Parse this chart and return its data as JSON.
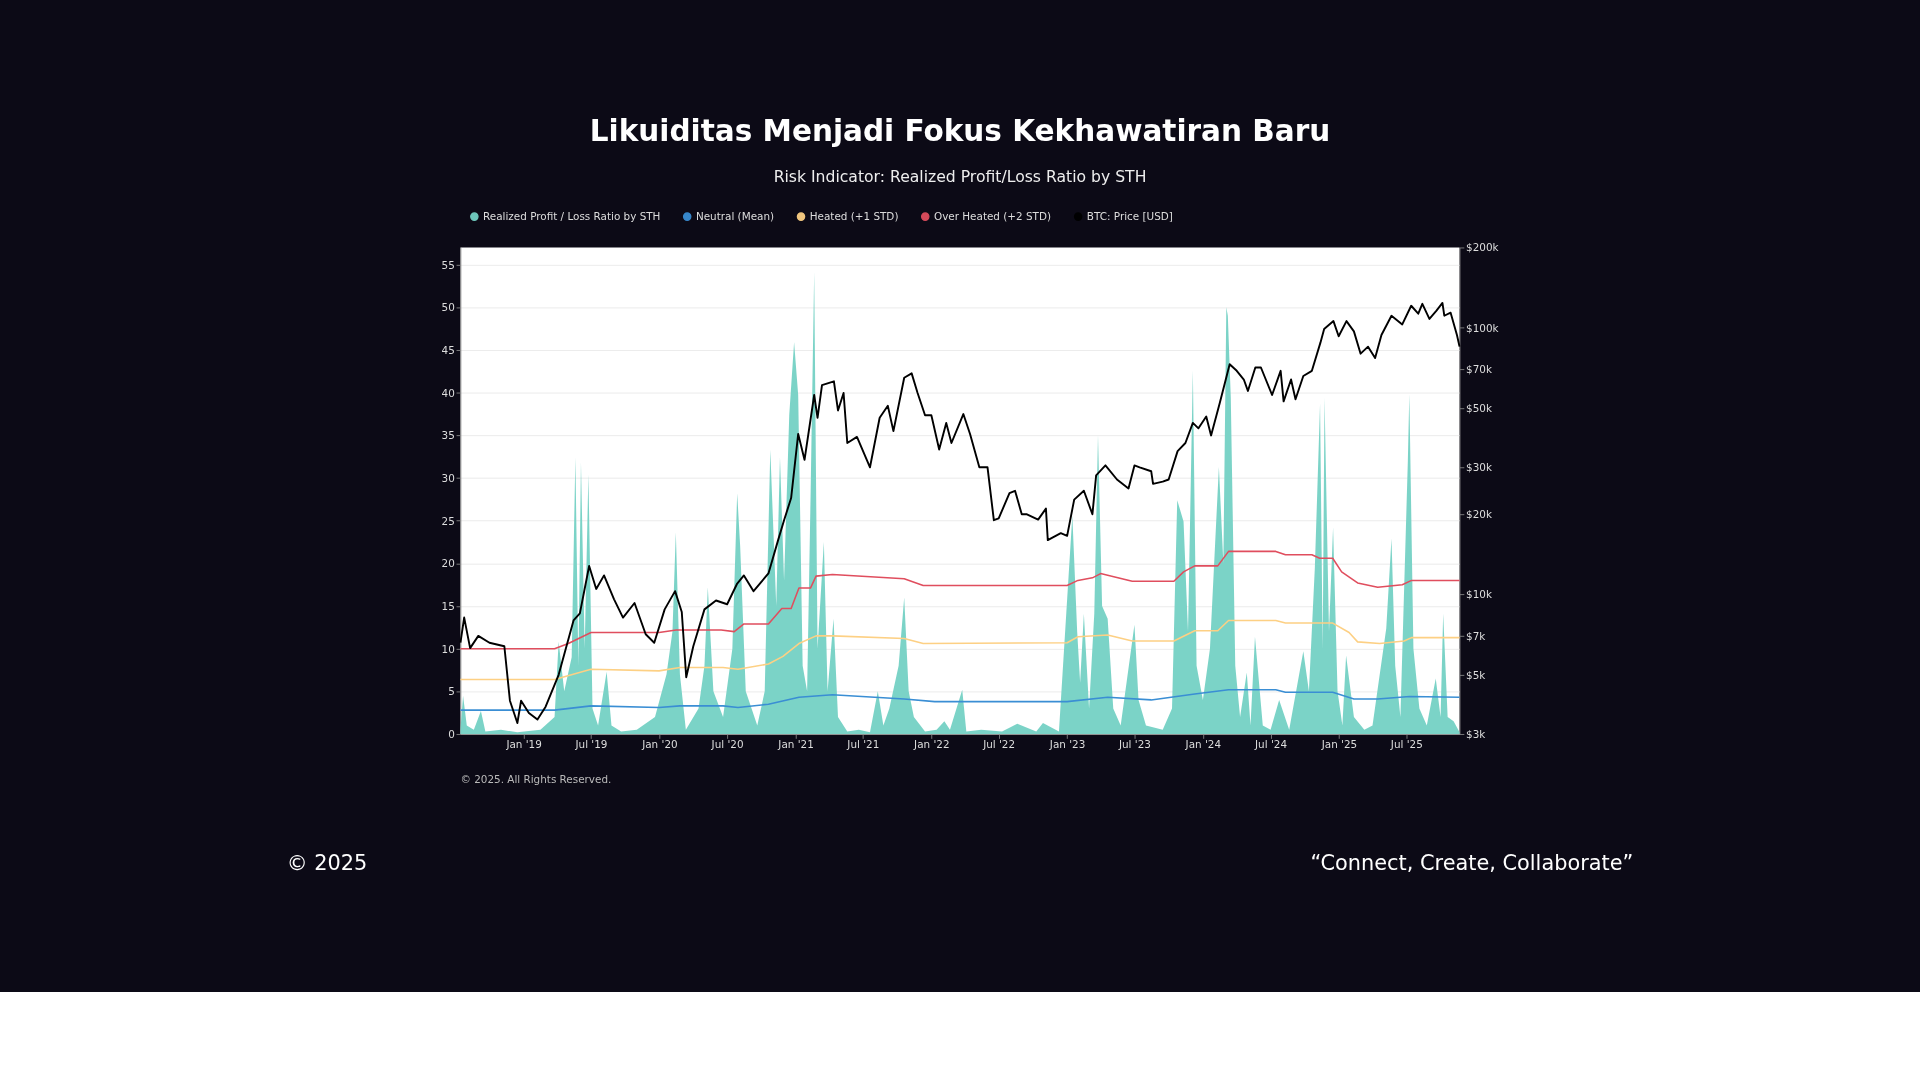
{
  "chart_data": {
    "type": "line",
    "title": "Likuiditas Menjadi Fokus Kekhawatiran Baru",
    "subtitle": "Risk Indicator: Realized Profit/Loss Ratio by STH",
    "annotations": [
      "© 2025. All Rights Reserved.",
      "© 2025",
      "“Connect, Create, Collaborate”"
    ],
    "xlim": [
      "2018-07-15",
      "2025-11-21"
    ],
    "xticks": [
      {
        "value": "2019-01-01",
        "label": "Jan '19"
      },
      {
        "value": "2019-07-01",
        "label": "Jul '19"
      },
      {
        "value": "2020-01-01",
        "label": "Jan '20"
      },
      {
        "value": "2020-07-01",
        "label": "Jul '20"
      },
      {
        "value": "2021-01-01",
        "label": "Jan '21"
      },
      {
        "value": "2021-07-01",
        "label": "Jul '21"
      },
      {
        "value": "2022-01-01",
        "label": "Jan '22"
      },
      {
        "value": "2022-07-01",
        "label": "Jul '22"
      },
      {
        "value": "2023-01-01",
        "label": "Jan '23"
      },
      {
        "value": "2023-07-01",
        "label": "Jul '23"
      },
      {
        "value": "2024-01-01",
        "label": "Jan '24"
      },
      {
        "value": "2024-07-01",
        "label": "Jul '24"
      },
      {
        "value": "2025-01-01",
        "label": "Jan '25"
      },
      {
        "value": "2025-07-01",
        "label": "Jul '25"
      }
    ],
    "ylim": [
      0,
      57
    ],
    "yticks": [
      0,
      5,
      10,
      15,
      20,
      25,
      30,
      35,
      40,
      45,
      50,
      55
    ],
    "y2lim": [
      3000,
      200000
    ],
    "y2ticks": [
      {
        "value": 3000,
        "label": "$3k"
      },
      {
        "value": 5000,
        "label": "$5k"
      },
      {
        "value": 7000,
        "label": "$7k"
      },
      {
        "value": 10000,
        "label": "$10k"
      },
      {
        "value": 20000,
        "label": "$20k"
      },
      {
        "value": 30000,
        "label": "$30k"
      },
      {
        "value": 50000,
        "label": "$50k"
      },
      {
        "value": 70000,
        "label": "$70k"
      },
      {
        "value": 100000,
        "label": "$100k"
      },
      {
        "value": 200000,
        "label": "$200k"
      }
    ],
    "log": "y2",
    "grid": "y",
    "legend": "top",
    "series": [
      {
        "name": "Realized Profit / Loss Ratio by STH",
        "type": "area",
        "color": "#74d1c4",
        "x": [
          "2018-07-15",
          "2018-07-22",
          "2018-08-01",
          "2018-08-20",
          "2018-09-08",
          "2018-09-20",
          "2018-11-01",
          "2018-12-15",
          "2019-02-15",
          "2019-03-25",
          "2019-04-05",
          "2019-04-20",
          "2019-05-10",
          "2019-05-20",
          "2019-05-28",
          "2019-06-04",
          "2019-06-14",
          "2019-06-24",
          "2019-07-05",
          "2019-07-20",
          "2019-08-12",
          "2019-08-25",
          "2019-09-20",
          "2019-11-01",
          "2019-12-20",
          "2020-01-20",
          "2020-02-05",
          "2020-02-14",
          "2020-02-25",
          "2020-03-12",
          "2020-04-15",
          "2020-05-01",
          "2020-05-10",
          "2020-05-25",
          "2020-06-20",
          "2020-07-15",
          "2020-07-28",
          "2020-08-05",
          "2020-08-20",
          "2020-09-20",
          "2020-10-10",
          "2020-10-25",
          "2020-11-10",
          "2020-11-20",
          "2020-12-01",
          "2020-12-15",
          "2020-12-28",
          "2021-01-08",
          "2021-01-20",
          "2021-02-01",
          "2021-02-10",
          "2021-02-20",
          "2021-03-01",
          "2021-03-18",
          "2021-03-28",
          "2021-04-13",
          "2021-04-25",
          "2021-05-20",
          "2021-06-20",
          "2021-07-20",
          "2021-08-10",
          "2021-08-25",
          "2021-09-10",
          "2021-10-05",
          "2021-10-20",
          "2021-11-01",
          "2021-11-15",
          "2021-12-15",
          "2022-01-15",
          "2022-02-05",
          "2022-02-20",
          "2022-03-25",
          "2022-04-05",
          "2022-05-15",
          "2022-07-10",
          "2022-08-20",
          "2022-10-10",
          "2022-10-28",
          "2022-12-10",
          "2023-01-15",
          "2023-01-28",
          "2023-02-05",
          "2023-02-15",
          "2023-03-01",
          "2023-03-15",
          "2023-03-25",
          "2023-04-05",
          "2023-04-20",
          "2023-05-05",
          "2023-05-25",
          "2023-07-01",
          "2023-07-12",
          "2023-08-01",
          "2023-09-15",
          "2023-10-10",
          "2023-10-24",
          "2023-11-10",
          "2023-11-22",
          "2023-12-05",
          "2023-12-15",
          "2024-01-01",
          "2024-01-20",
          "2024-02-13",
          "2024-02-25",
          "2024-03-04",
          "2024-03-08",
          "2024-03-16",
          "2024-03-28",
          "2024-04-10",
          "2024-04-28",
          "2024-05-08",
          "2024-05-20",
          "2024-06-10",
          "2024-07-01",
          "2024-07-24",
          "2024-08-20",
          "2024-09-27",
          "2024-10-12",
          "2024-10-28",
          "2024-11-11",
          "2024-11-18",
          "2024-11-23",
          "2024-12-05",
          "2024-12-16",
          "2024-12-28",
          "2025-01-10",
          "2025-01-20",
          "2025-02-10",
          "2025-03-10",
          "2025-04-01",
          "2025-05-08",
          "2025-05-22",
          "2025-06-01",
          "2025-06-15",
          "2025-07-05",
          "2025-07-09",
          "2025-07-20",
          "2025-08-05",
          "2025-08-25",
          "2025-09-18",
          "2025-10-01",
          "2025-10-08",
          "2025-10-20",
          "2025-11-05",
          "2025-11-21"
        ],
        "values": [
          0.5,
          4.5,
          1.0,
          0.5,
          2.7,
          0.3,
          0.5,
          0.2,
          0.5,
          2.0,
          10.8,
          5.0,
          9.0,
          32.4,
          8.0,
          31.8,
          10.0,
          30.4,
          3.0,
          1.0,
          7.3,
          1.0,
          0.3,
          0.5,
          2.0,
          7.0,
          12.0,
          23.6,
          7.0,
          0.5,
          3.0,
          8.0,
          17.2,
          5.0,
          2.0,
          10.0,
          28.2,
          22.0,
          5.0,
          1.0,
          5.0,
          33.3,
          15.0,
          32.4,
          18.0,
          37.4,
          45.9,
          39.7,
          8.0,
          5.0,
          27.2,
          54.1,
          10.0,
          22.5,
          5.0,
          13.5,
          2.0,
          0.3,
          0.5,
          0.2,
          5.0,
          1.0,
          3.0,
          8.0,
          16.0,
          5.0,
          2.0,
          0.3,
          0.5,
          1.5,
          0.5,
          5.2,
          0.3,
          0.5,
          0.3,
          1.2,
          0.3,
          1.3,
          0.3,
          25.6,
          12.0,
          6.0,
          14.1,
          3.0,
          14.1,
          35.0,
          15.0,
          13.5,
          3.0,
          1.0,
          12.8,
          4.0,
          1.0,
          0.5,
          3.0,
          27.4,
          24.9,
          12.0,
          42.6,
          8.0,
          4.0,
          10.0,
          31.3,
          20.0,
          50.0,
          49.0,
          39.4,
          8.0,
          2.0,
          7.2,
          1.0,
          11.4,
          1.0,
          0.5,
          4.0,
          0.5,
          9.7,
          5.0,
          19.5,
          38.7,
          10.0,
          39.4,
          12.0,
          24.2,
          5.0,
          1.0,
          9.2,
          2.0,
          0.5,
          1.0,
          12.4,
          22.9,
          8.0,
          2.0,
          32.0,
          39.8,
          10.0,
          3.0,
          1.0,
          6.5,
          2.0,
          14.1,
          2.0,
          1.5,
          0.2
        ]
      },
      {
        "name": "Neutral (Mean)",
        "color": "#3a8ed4",
        "x": [
          "2018-07-15",
          "2019-03-25",
          "2019-07-01",
          "2019-12-31",
          "2020-02-25",
          "2020-06-20",
          "2020-07-30",
          "2020-10-20",
          "2021-01-10",
          "2021-04-10",
          "2021-10-20",
          "2022-01-10",
          "2023-01-01",
          "2023-04-20",
          "2023-08-15",
          "2023-12-10",
          "2024-03-10",
          "2024-07-15",
          "2024-08-10",
          "2024-12-15",
          "2025-02-10",
          "2025-04-15",
          "2025-07-10",
          "2025-11-21"
        ],
        "values": [
          2.8,
          2.8,
          3.3,
          3.1,
          3.3,
          3.3,
          3.1,
          3.5,
          4.3,
          4.6,
          4.1,
          3.8,
          3.8,
          4.3,
          4.0,
          4.7,
          5.2,
          5.2,
          4.9,
          4.9,
          4.1,
          4.1,
          4.4,
          4.3
        ]
      },
      {
        "name": "Heated (+1 STD)",
        "color": "#fdd084",
        "x": [
          "2018-07-15",
          "2019-03-25",
          "2019-07-01",
          "2019-12-31",
          "2020-02-25",
          "2020-06-20",
          "2020-07-30",
          "2020-10-20",
          "2020-11-28",
          "2021-01-10",
          "2021-02-25",
          "2021-04-10",
          "2021-10-20",
          "2021-12-10",
          "2023-01-01",
          "2023-01-30",
          "2023-04-20",
          "2023-06-25",
          "2023-10-15",
          "2023-12-10",
          "2024-02-10",
          "2024-03-10",
          "2024-07-15",
          "2024-08-10",
          "2024-12-15",
          "2025-01-28",
          "2025-02-20",
          "2025-04-20",
          "2025-06-25",
          "2025-07-15",
          "2025-11-21"
        ],
        "values": [
          6.4,
          6.4,
          7.6,
          7.4,
          7.8,
          7.8,
          7.6,
          8.2,
          9.1,
          10.6,
          11.5,
          11.5,
          11.2,
          10.6,
          10.7,
          11.4,
          11.6,
          10.9,
          10.9,
          12.1,
          12.1,
          13.3,
          13.3,
          13.0,
          13.0,
          11.9,
          10.8,
          10.6,
          10.9,
          11.3,
          11.3
        ]
      },
      {
        "name": "Over Heated (+2 STD)",
        "color": "#e04e5e",
        "x": [
          "2018-07-15",
          "2019-03-25",
          "2019-05-01",
          "2019-07-01",
          "2019-12-31",
          "2020-02-15",
          "2020-06-15",
          "2020-07-20",
          "2020-08-15",
          "2020-10-20",
          "2020-11-25",
          "2020-12-20",
          "2021-01-10",
          "2021-02-10",
          "2021-02-25",
          "2021-04-10",
          "2021-10-20",
          "2021-12-10",
          "2023-01-01",
          "2023-01-30",
          "2023-03-10",
          "2023-04-01",
          "2023-05-01",
          "2023-06-25",
          "2023-10-15",
          "2023-11-10",
          "2023-12-10",
          "2024-02-10",
          "2024-03-10",
          "2024-07-15",
          "2024-08-10",
          "2024-10-20",
          "2024-11-10",
          "2024-12-15",
          "2025-01-08",
          "2025-02-20",
          "2025-04-15",
          "2025-06-20",
          "2025-07-15",
          "2025-11-21"
        ],
        "values": [
          10.0,
          10.0,
          10.6,
          11.9,
          11.9,
          12.2,
          12.2,
          12.0,
          12.9,
          12.9,
          14.7,
          14.7,
          17.1,
          17.1,
          18.5,
          18.7,
          18.2,
          17.4,
          17.4,
          18.0,
          18.3,
          18.8,
          18.5,
          17.9,
          17.9,
          19.0,
          19.7,
          19.7,
          21.4,
          21.4,
          21.0,
          21.0,
          20.6,
          20.6,
          19.0,
          17.7,
          17.2,
          17.5,
          18.0,
          18.0
        ]
      },
      {
        "name": "BTC: Price [USD]",
        "color": "#000000",
        "axis": "y2",
        "x": [
          "2018-07-15",
          "2018-07-25",
          "2018-08-10",
          "2018-09-01",
          "2018-10-01",
          "2018-11-10",
          "2018-11-25",
          "2018-12-15",
          "2018-12-25",
          "2019-01-15",
          "2019-02-07",
          "2019-03-01",
          "2019-04-05",
          "2019-05-15",
          "2019-06-01",
          "2019-06-26",
          "2019-07-15",
          "2019-08-05",
          "2019-09-01",
          "2019-09-25",
          "2019-10-26",
          "2019-11-25",
          "2019-12-18",
          "2020-01-15",
          "2020-02-12",
          "2020-03-01",
          "2020-03-13",
          "2020-04-01",
          "2020-05-01",
          "2020-06-01",
          "2020-07-01",
          "2020-07-28",
          "2020-08-15",
          "2020-09-10",
          "2020-10-20",
          "2020-11-15",
          "2020-12-01",
          "2020-12-20",
          "2021-01-08",
          "2021-01-25",
          "2021-02-20",
          "2021-03-01",
          "2021-03-13",
          "2021-04-14",
          "2021-04-25",
          "2021-05-10",
          "2021-05-20",
          "2021-06-15",
          "2021-07-20",
          "2021-08-15",
          "2021-09-06",
          "2021-09-21",
          "2021-10-20",
          "2021-11-09",
          "2021-11-25",
          "2021-12-15",
          "2022-01-01",
          "2022-01-22",
          "2022-02-10",
          "2022-02-24",
          "2022-03-28",
          "2022-04-15",
          "2022-05-10",
          "2022-06-01",
          "2022-06-18",
          "2022-07-01",
          "2022-07-30",
          "2022-08-14",
          "2022-09-01",
          "2022-09-15",
          "2022-10-15",
          "2022-11-05",
          "2022-11-10",
          "2022-12-15",
          "2023-01-01",
          "2023-01-20",
          "2023-02-15",
          "2023-03-10",
          "2023-03-20",
          "2023-04-14",
          "2023-05-15",
          "2023-06-15",
          "2023-07-01",
          "2023-07-15",
          "2023-08-15",
          "2023-08-20",
          "2023-09-15",
          "2023-10-01",
          "2023-10-25",
          "2023-11-15",
          "2023-12-05",
          "2023-12-20",
          "2024-01-10",
          "2024-01-23",
          "2024-02-15",
          "2024-03-13",
          "2024-04-01",
          "2024-04-20",
          "2024-05-01",
          "2024-05-21",
          "2024-06-05",
          "2024-07-05",
          "2024-07-28",
          "2024-08-05",
          "2024-08-25",
          "2024-09-06",
          "2024-09-27",
          "2024-10-20",
          "2024-11-12",
          "2024-11-22",
          "2024-12-17",
          "2024-12-31",
          "2025-01-21",
          "2025-02-10",
          "2025-02-28",
          "2025-03-20",
          "2025-04-08",
          "2025-04-25",
          "2025-05-22",
          "2025-06-20",
          "2025-07-14",
          "2025-08-02",
          "2025-08-13",
          "2025-09-01",
          "2025-09-20",
          "2025-10-06",
          "2025-10-11",
          "2025-10-28",
          "2025-11-14",
          "2025-11-21"
        ],
        "values": [
          6600,
          8200,
          6300,
          7000,
          6600,
          6400,
          4000,
          3300,
          4000,
          3600,
          3400,
          3800,
          5000,
          8000,
          8500,
          12800,
          10500,
          11800,
          9600,
          8200,
          9300,
          7100,
          6600,
          8800,
          10300,
          8600,
          4900,
          6400,
          8800,
          9500,
          9200,
          11000,
          11800,
          10300,
          12000,
          16000,
          19000,
          23000,
          40000,
          32000,
          56000,
          46000,
          61000,
          63000,
          49000,
          57000,
          37000,
          39000,
          30000,
          46000,
          51000,
          41000,
          65000,
          67500,
          57000,
          47000,
          47000,
          35000,
          44000,
          37000,
          47500,
          40000,
          30000,
          30000,
          19000,
          19300,
          24000,
          24500,
          20000,
          20000,
          19100,
          21000,
          16000,
          17000,
          16600,
          22700,
          24500,
          20000,
          28000,
          30500,
          27000,
          25000,
          30500,
          30000,
          29000,
          26000,
          26500,
          27000,
          34500,
          37000,
          44000,
          42000,
          46500,
          39500,
          52000,
          73000,
          69000,
          64000,
          58000,
          71000,
          71000,
          56000,
          69000,
          53000,
          64000,
          54000,
          66000,
          69000,
          88000,
          99000,
          106000,
          93000,
          106000,
          97000,
          80000,
          85000,
          77000,
          94000,
          111000,
          103000,
          121000,
          113000,
          123000,
          108000,
          116000,
          124000,
          111000,
          114000,
          94000,
          85000
        ]
      }
    ]
  }
}
